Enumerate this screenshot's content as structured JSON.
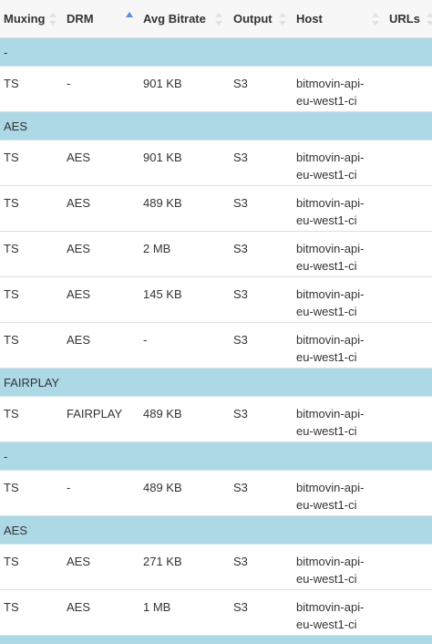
{
  "header": {
    "columns": [
      "Muxing",
      "DRM",
      "Avg Bitrate",
      "Output",
      "Host",
      "URLs"
    ]
  },
  "groups": [
    {
      "label": "-",
      "rows": [
        [
          "TS",
          "-",
          "901 KB",
          "S3",
          "bitmovin-api-eu-west1-ci"
        ]
      ]
    },
    {
      "label": "AES",
      "rows": [
        [
          "TS",
          "AES",
          "901 KB",
          "S3",
          "bitmovin-api-eu-west1-ci"
        ],
        [
          "TS",
          "AES",
          "489 KB",
          "S3",
          "bitmovin-api-eu-west1-ci"
        ],
        [
          "TS",
          "AES",
          "2 MB",
          "S3",
          "bitmovin-api-eu-west1-ci"
        ],
        [
          "TS",
          "AES",
          "145 KB",
          "S3",
          "bitmovin-api-eu-west1-ci"
        ],
        [
          "TS",
          "AES",
          "-",
          "S3",
          "bitmovin-api-eu-west1-ci"
        ]
      ]
    },
    {
      "label": "FAIRPLAY",
      "rows": [
        [
          "TS",
          "FAIRPLAY",
          "489 KB",
          "S3",
          "bitmovin-api-eu-west1-ci"
        ]
      ]
    },
    {
      "label": "-",
      "rows": [
        [
          "TS",
          "-",
          "489 KB",
          "S3",
          "bitmovin-api-eu-west1-ci"
        ]
      ]
    },
    {
      "label": "AES",
      "rows": [
        [
          "TS",
          "AES",
          "271 KB",
          "S3",
          "bitmovin-api-eu-west1-ci"
        ],
        [
          "TS",
          "AES",
          "1 MB",
          "S3",
          "bitmovin-api-eu-west1-ci"
        ]
      ]
    }
  ]
}
